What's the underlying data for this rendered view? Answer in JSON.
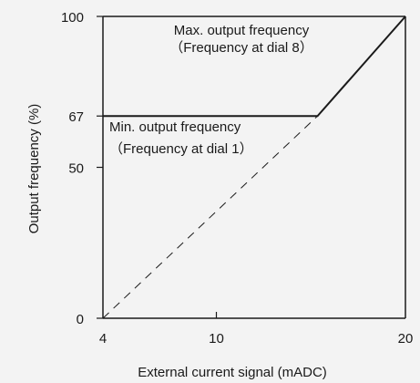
{
  "chart_data": {
    "type": "line",
    "xlabel": "External current signal (mADC)",
    "ylabel": "Output frequency (%)",
    "xlim": [
      4,
      20
    ],
    "ylim": [
      0,
      100
    ],
    "x_ticks": [
      {
        "value": 4,
        "label": "4"
      },
      {
        "value": 10,
        "label": "10"
      },
      {
        "value": 20,
        "label": "20"
      }
    ],
    "y_ticks": [
      {
        "value": 0,
        "label": "0"
      },
      {
        "value": 50,
        "label": "50"
      },
      {
        "value": 67,
        "label": "67"
      },
      {
        "value": 100,
        "label": "100"
      }
    ],
    "series": [
      {
        "style": "solid",
        "x": [
          4,
          15.35,
          20
        ],
        "y": [
          67,
          67,
          100
        ]
      },
      {
        "style": "dashed",
        "x": [
          4,
          15.35
        ],
        "y": [
          0,
          67
        ]
      }
    ],
    "reference_lines": [
      {
        "axis": "y",
        "value": 100,
        "style": "solid"
      }
    ],
    "annotations": [
      {
        "lines": [
          "Max. output frequency",
          "（Frequency at dial 8）"
        ]
      },
      {
        "lines": [
          "Min. output frequency",
          "（Frequency at dial 1）"
        ]
      }
    ],
    "grid": false
  }
}
